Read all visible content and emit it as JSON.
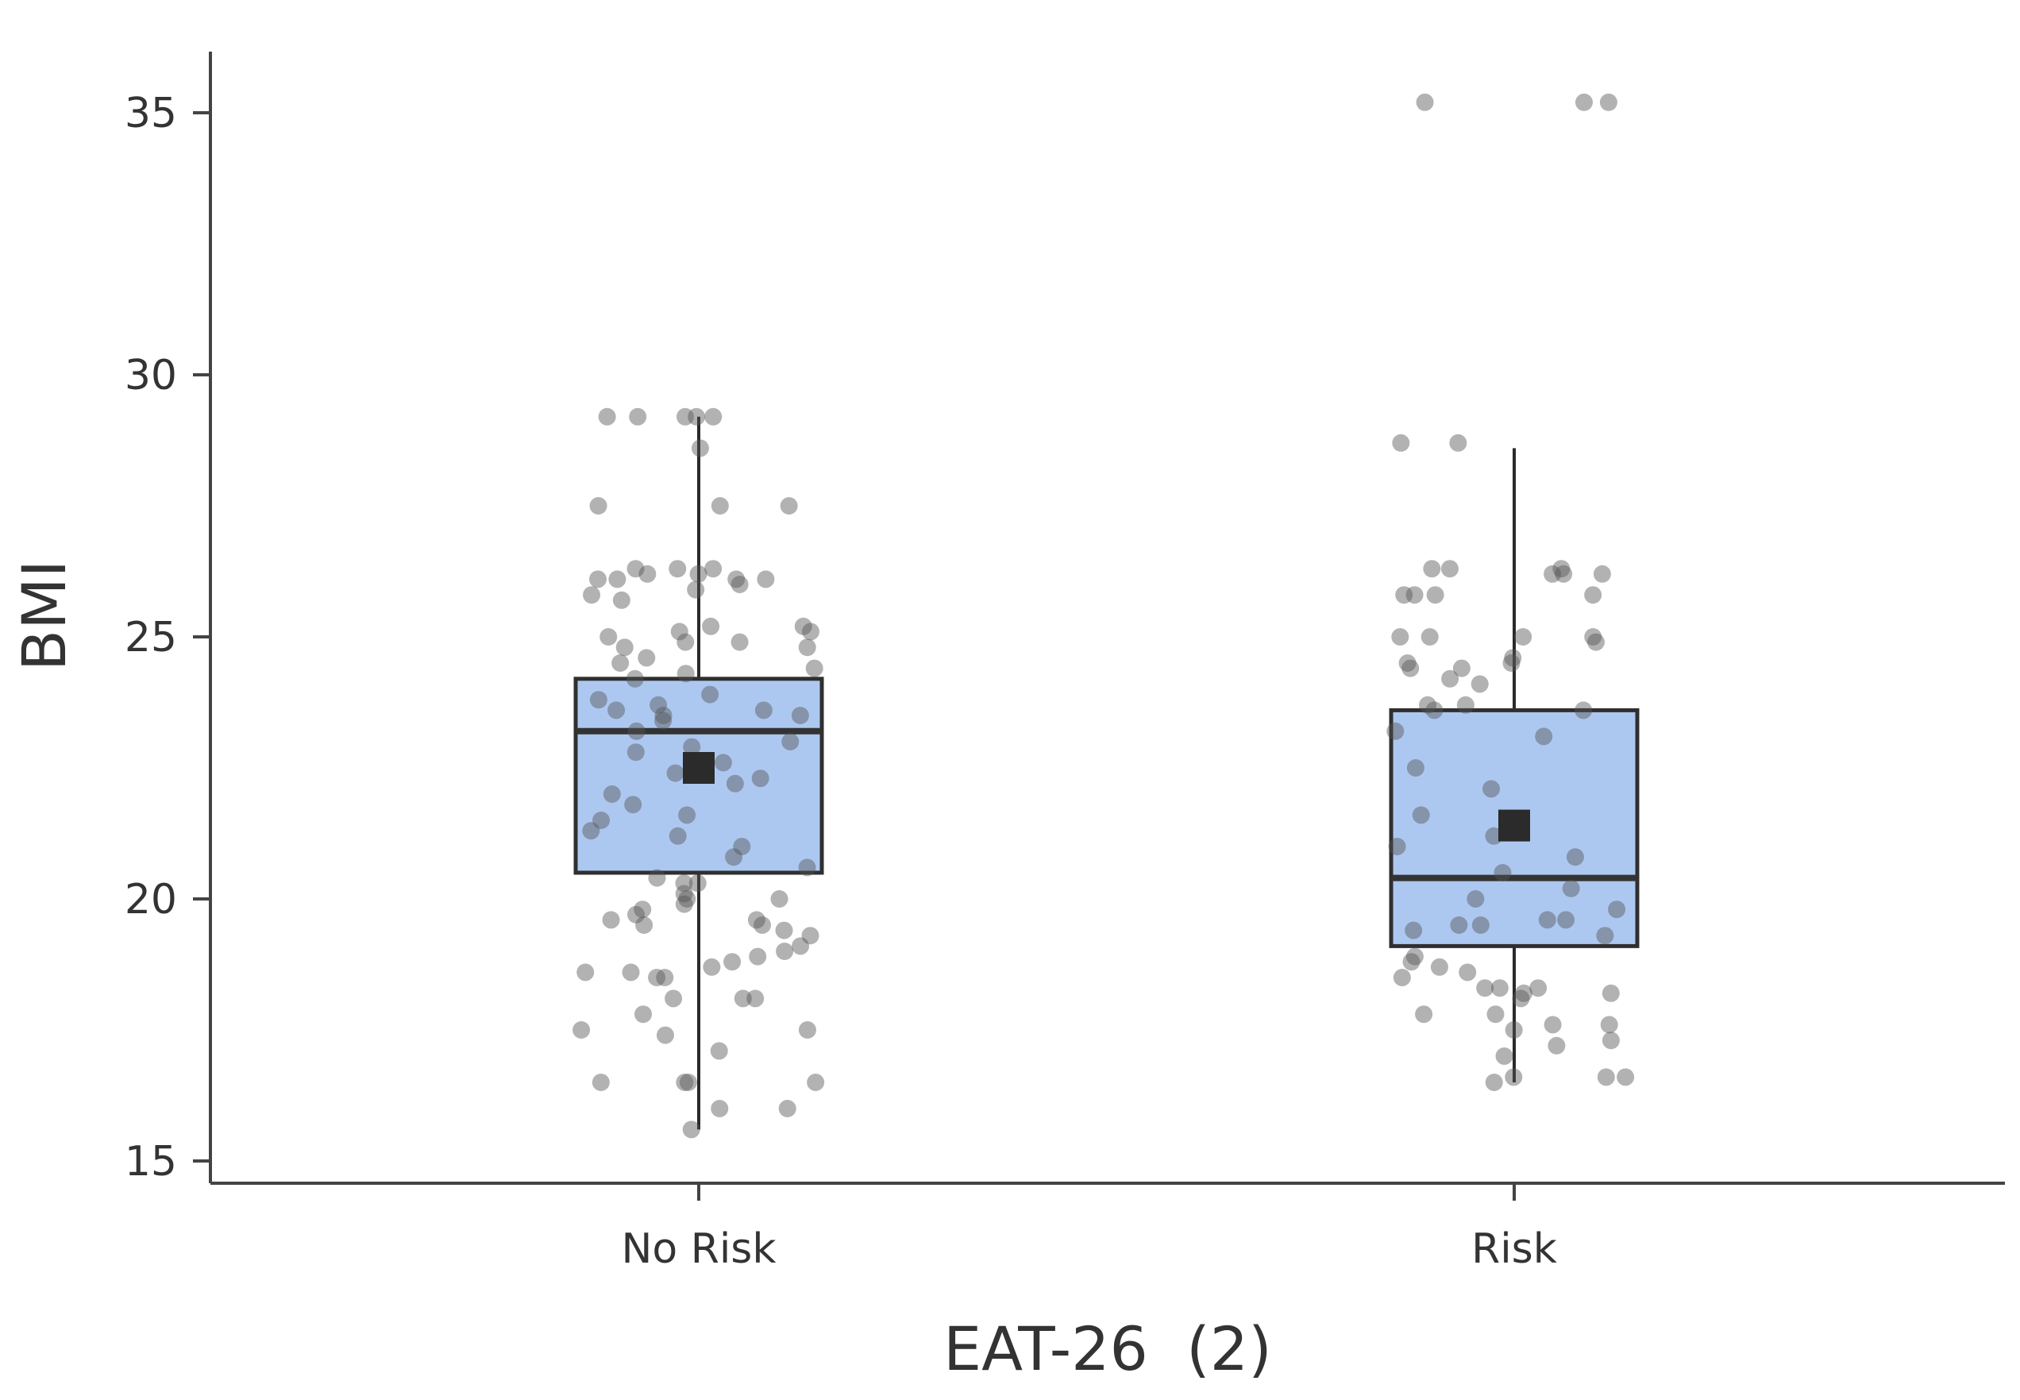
{
  "chart_data": {
    "type": "box",
    "xlabel": "EAT-26  (2)",
    "ylabel": "BMI",
    "ylim": [
      15,
      36
    ],
    "yticks": [
      15,
      20,
      25,
      30,
      35
    ],
    "yticks_labels": [
      "15",
      "20",
      "25",
      "30",
      "35"
    ],
    "categories": [
      "No Risk",
      "Risk"
    ],
    "boxes": [
      {
        "category": "No Risk",
        "whisker_low": 15.6,
        "q1": 20.5,
        "median": 23.2,
        "q3": 24.2,
        "whisker_high": 29.2,
        "mean": 22.5,
        "points": [
          29.2,
          29.2,
          29.2,
          29.2,
          29.2,
          28.6,
          27.5,
          27.5,
          27.5,
          26.3,
          26.2,
          26.1,
          26.1,
          26.1,
          26.2,
          26.3,
          26.0,
          26.1,
          26.3,
          25.9,
          25.7,
          25.8,
          25.2,
          25.1,
          25.0,
          24.9,
          24.8,
          24.8,
          25.1,
          25.2,
          24.9,
          24.6,
          24.5,
          24.4,
          24.3,
          24.2,
          23.9,
          23.7,
          23.6,
          23.6,
          23.5,
          23.4,
          23.8,
          23.5,
          23.2,
          23.0,
          22.9,
          22.8,
          22.6,
          22.4,
          22.3,
          22.2,
          22.0,
          21.8,
          21.6,
          21.5,
          21.3,
          21.2,
          21.0,
          20.8,
          20.6,
          20.4,
          20.3,
          20.3,
          20.1,
          20.0,
          20.0,
          19.9,
          19.8,
          19.7,
          19.6,
          19.6,
          19.5,
          19.5,
          19.4,
          19.3,
          19.1,
          19.0,
          18.9,
          18.8,
          18.7,
          18.6,
          18.5,
          18.5,
          18.6,
          18.1,
          18.1,
          18.1,
          17.8,
          17.5,
          17.5,
          17.4,
          17.1,
          16.5,
          16.5,
          16.5,
          16.5,
          16.0,
          16.0,
          15.6
        ]
      },
      {
        "category": "Risk",
        "whisker_low": 16.5,
        "q1": 19.1,
        "median": 20.4,
        "q3": 23.6,
        "whisker_high": 28.6,
        "mean": 21.4,
        "points": [
          35.2,
          35.2,
          35.2,
          28.7,
          28.7,
          26.3,
          26.2,
          26.3,
          26.2,
          26.2,
          26.3,
          25.8,
          25.8,
          25.8,
          25.8,
          25.0,
          25.0,
          25.0,
          24.9,
          25.0,
          24.6,
          24.5,
          24.4,
          24.5,
          24.4,
          24.1,
          24.2,
          23.7,
          23.6,
          23.7,
          23.6,
          23.2,
          23.1,
          22.5,
          22.1,
          21.6,
          21.5,
          21.2,
          21.0,
          20.8,
          20.5,
          20.2,
          20.0,
          19.8,
          19.6,
          19.6,
          19.5,
          19.5,
          19.4,
          19.3,
          18.9,
          18.8,
          18.7,
          18.6,
          18.5,
          18.3,
          18.3,
          18.3,
          18.2,
          18.2,
          18.1,
          17.8,
          17.8,
          17.6,
          17.6,
          17.5,
          17.3,
          17.2,
          17.0,
          16.6,
          16.6,
          16.5,
          16.6
        ]
      }
    ],
    "colors": {
      "box_fill": "#adc8f0",
      "box_stroke": "#2f2f2f",
      "points": "#555555",
      "mean": "#2b2b2b"
    }
  }
}
